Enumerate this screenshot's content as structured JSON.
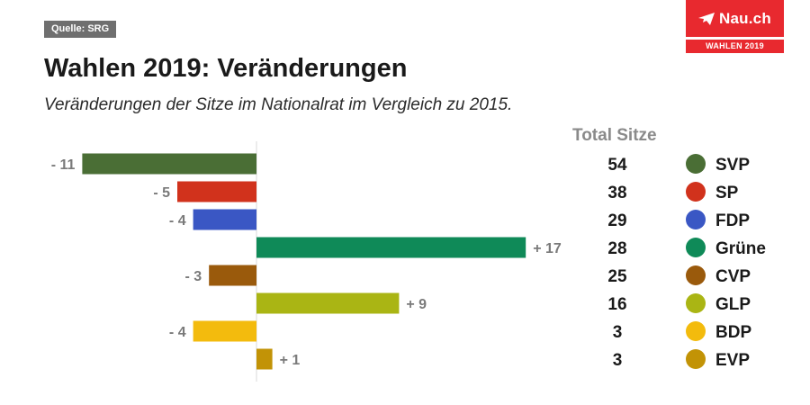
{
  "source": "Quelle: SRG",
  "brand": {
    "name": "Nau.ch",
    "tag": "WAHLEN 2019",
    "color": "#e8292f",
    "icon": "paper-plane-icon"
  },
  "title": "Wahlen 2019: Veränderungen",
  "subtitle": "Veränderungen der Sitze im Nationalrat im Vergleich zu 2015.",
  "total_header": "Total Sitze",
  "chart_data": {
    "type": "bar",
    "orientation": "horizontal",
    "categories": [
      "SVP",
      "SP",
      "FDP",
      "Grüne",
      "CVP",
      "GLP",
      "BDP",
      "EVP"
    ],
    "values": [
      -11,
      -5,
      -4,
      17,
      -3,
      9,
      -4,
      1
    ],
    "value_labels": [
      "- 11",
      "- 5",
      "- 4",
      "+ 17",
      "- 3",
      "+ 9",
      "- 4",
      "+ 1"
    ],
    "totals": [
      54,
      38,
      29,
      28,
      25,
      16,
      3,
      3
    ],
    "colors": [
      "#4a6e35",
      "#d1321c",
      "#3a57c4",
      "#0f8a58",
      "#9a5a0c",
      "#aab514",
      "#f3bb0d",
      "#c29306"
    ],
    "title": "Wahlen 2019: Veränderungen",
    "xlim": [
      -11,
      17
    ],
    "grid": false,
    "legend": "right"
  }
}
